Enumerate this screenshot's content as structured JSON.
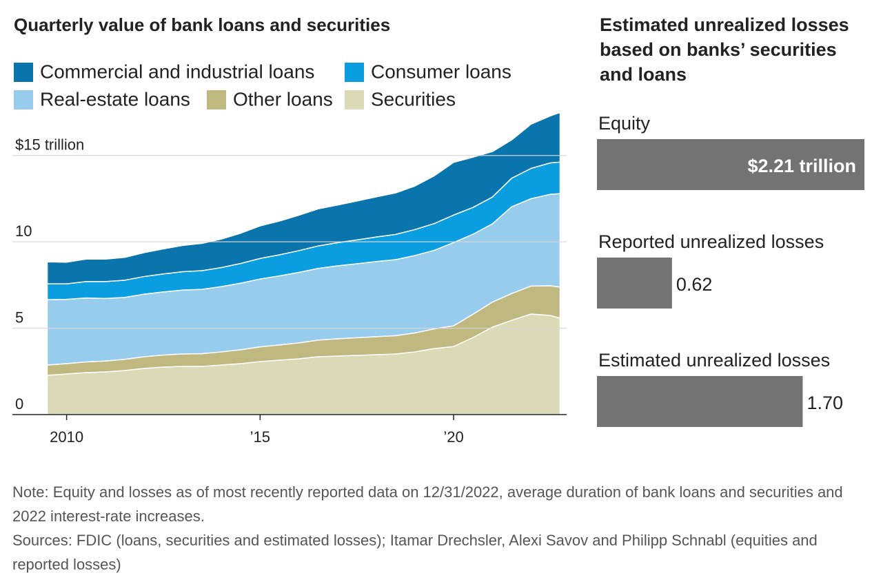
{
  "chart_data": [
    {
      "type": "area",
      "stacked": true,
      "title": "Quarterly value of bank loans and securities",
      "x": [
        2009.5,
        2010,
        2010.5,
        2011,
        2011.5,
        2012,
        2012.5,
        2013,
        2013.5,
        2014,
        2014.5,
        2015,
        2015.5,
        2016,
        2016.5,
        2017,
        2017.5,
        2018,
        2018.5,
        2019,
        2019.5,
        2020,
        2020.5,
        2021,
        2021.5,
        2022,
        2022.5,
        2022.75
      ],
      "series": [
        {
          "name": "Commercial and industrial loans",
          "color": "#0a74ac",
          "values": [
            1.27,
            1.25,
            1.3,
            1.3,
            1.32,
            1.38,
            1.45,
            1.52,
            1.58,
            1.65,
            1.75,
            1.88,
            1.95,
            2.05,
            2.15,
            2.18,
            2.25,
            2.32,
            2.4,
            2.52,
            2.76,
            3.05,
            2.91,
            2.63,
            2.22,
            2.56,
            2.72,
            2.87
          ]
        },
        {
          "name": "Consumer loans",
          "color": "#0a9de0",
          "values": [
            0.92,
            0.9,
            0.95,
            0.98,
            1.0,
            1.02,
            1.04,
            1.06,
            1.08,
            1.1,
            1.14,
            1.19,
            1.22,
            1.26,
            1.3,
            1.34,
            1.38,
            1.42,
            1.46,
            1.5,
            1.55,
            1.59,
            1.55,
            1.55,
            1.65,
            1.75,
            1.82,
            1.83
          ]
        },
        {
          "name": "Real-estate loans",
          "color": "#97cced",
          "values": [
            3.78,
            3.72,
            3.7,
            3.62,
            3.58,
            3.62,
            3.65,
            3.7,
            3.72,
            3.78,
            3.86,
            3.93,
            4.0,
            4.08,
            4.15,
            4.22,
            4.28,
            4.35,
            4.4,
            4.48,
            4.55,
            4.82,
            4.63,
            4.53,
            5.02,
            5.06,
            5.29,
            5.41
          ]
        },
        {
          "name": "Other loans",
          "color": "#bfb880",
          "values": [
            0.6,
            0.6,
            0.62,
            0.63,
            0.65,
            0.68,
            0.7,
            0.72,
            0.74,
            0.76,
            0.8,
            0.85,
            0.88,
            0.92,
            0.96,
            1.0,
            1.02,
            1.04,
            1.06,
            1.1,
            1.14,
            1.2,
            1.35,
            1.45,
            1.55,
            1.62,
            1.72,
            1.8
          ]
        },
        {
          "name": "Securities",
          "color": "#dcd9b6",
          "values": [
            2.27,
            2.35,
            2.43,
            2.47,
            2.55,
            2.67,
            2.75,
            2.79,
            2.79,
            2.87,
            2.95,
            3.07,
            3.15,
            3.23,
            3.35,
            3.39,
            3.43,
            3.47,
            3.51,
            3.63,
            3.82,
            3.94,
            4.46,
            5.06,
            5.46,
            5.82,
            5.74,
            5.58
          ]
        }
      ],
      "xlim": [
        2008.6,
        2022.92
      ],
      "xticks": [
        2010,
        {
          "value": 2015,
          "label": "’15"
        },
        {
          "value": 2020,
          "label": "’20"
        }
      ],
      "ylim": [
        0,
        17.5
      ],
      "yticks": [
        0,
        5,
        10,
        {
          "value": 15,
          "label": "$15  trillion"
        }
      ],
      "grid": true
    },
    {
      "type": "bar",
      "orientation": "horizontal",
      "title": "Estimated unrealized losses based on banks’ securities and loans",
      "categories": [
        "Equity",
        "Reported unrealized losses",
        "Estimated unrealized losses"
      ],
      "values": [
        2.21,
        0.62,
        1.7
      ],
      "value_labels": [
        "$2.21 trillion",
        "0.62",
        "1.70"
      ],
      "color": "#737373",
      "xlim": [
        0,
        2.21
      ]
    }
  ],
  "notes": [
    "Note: Equity and losses as of most recently reported data on 12/31/2022, average duration of bank loans and securities and 2022 interest-rate increases.",
    "Sources: FDIC (loans, securities and estimated losses); Itamar Drechsler, Alexi Savov and Philipp Schnabl (equities and reported losses)"
  ]
}
